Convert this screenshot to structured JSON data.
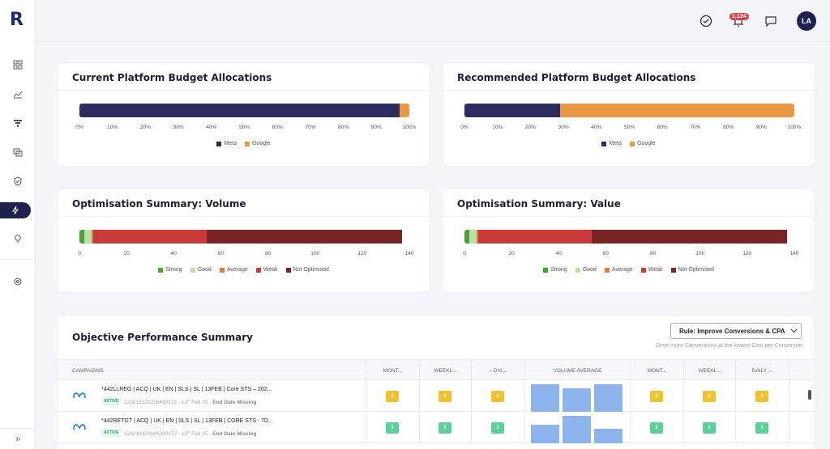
{
  "app": {
    "logo_letter": "R",
    "notification_count": "1,124",
    "user_initials": "LA"
  },
  "colors": {
    "meta": "#2e2c5e",
    "google": "#eb9844",
    "strong": "#4e9e3e",
    "good": "#b5e3a6",
    "average": "#e07a3e",
    "weak": "#c93a3a",
    "not_optimised": "#7a2525",
    "badge_yellow": "#f2c12e",
    "badge_green": "#5fcf9a",
    "volume_bar": "#8db4ec"
  },
  "cards": {
    "current_allocation": {
      "title": "Current Platform Budget Allocations",
      "chart_data": {
        "type": "bar",
        "orientation": "horizontal-stacked",
        "categories": [
          ""
        ],
        "series": [
          {
            "name": "Meta",
            "values": [
              97
            ]
          },
          {
            "name": "Google",
            "values": [
              3
            ]
          }
        ],
        "xlim": [
          0,
          100
        ],
        "ticks": [
          "0%",
          "10%",
          "20%",
          "30%",
          "40%",
          "50%",
          "60%",
          "70%",
          "80%",
          "90%",
          "100%"
        ],
        "legend": [
          "Meta",
          "Google"
        ]
      }
    },
    "recommended_allocation": {
      "title": "Recommended Platform Budget Allocations",
      "chart_data": {
        "type": "bar",
        "orientation": "horizontal-stacked",
        "categories": [
          ""
        ],
        "series": [
          {
            "name": "Meta",
            "values": [
              29
            ]
          },
          {
            "name": "Google",
            "values": [
              71
            ]
          }
        ],
        "xlim": [
          0,
          100
        ],
        "ticks": [
          "0%",
          "10%",
          "20%",
          "30%",
          "40%",
          "50%",
          "60%",
          "70%",
          "80%",
          "90%",
          "100%"
        ],
        "legend": [
          "Meta",
          "Google"
        ]
      }
    },
    "opt_volume": {
      "title": "Optimisation Summary: Volume",
      "chart_data": {
        "type": "bar",
        "orientation": "horizontal-stacked",
        "categories": [
          ""
        ],
        "series": [
          {
            "name": "Strong",
            "values": [
              2
            ]
          },
          {
            "name": "Good",
            "values": [
              3
            ]
          },
          {
            "name": "Average",
            "values": [
              1
            ]
          },
          {
            "name": "Weak",
            "values": [
              48
            ]
          },
          {
            "name": "Not Optimised",
            "values": [
              83
            ]
          }
        ],
        "xlim": [
          0,
          140
        ],
        "ticks": [
          "0",
          "20",
          "40",
          "60",
          "80",
          "100",
          "120",
          "140"
        ],
        "legend": [
          "Strong",
          "Good",
          "Average",
          "Weak",
          "Not Optimised"
        ]
      }
    },
    "opt_value": {
      "title": "Optimisation Summary: Value",
      "chart_data": {
        "type": "bar",
        "orientation": "horizontal-stacked",
        "categories": [
          ""
        ],
        "series": [
          {
            "name": "Strong",
            "values": [
              2
            ]
          },
          {
            "name": "Good",
            "values": [
              3
            ]
          },
          {
            "name": "Average",
            "values": [
              1
            ]
          },
          {
            "name": "Weak",
            "values": [
              48
            ]
          },
          {
            "name": "Not Optimised",
            "values": [
              83
            ]
          }
        ],
        "xlim": [
          0,
          140
        ],
        "ticks": [
          "0",
          "20",
          "40",
          "60",
          "80",
          "100",
          "120",
          "140"
        ],
        "legend": [
          "Strong",
          "Good",
          "Average",
          "Weak",
          "Not Optimised"
        ]
      }
    }
  },
  "objective": {
    "title": "Objective Performance Summary",
    "rule_button": "Rule: Improve Conversions & CPA",
    "rule_subtitle": "Drive more Conversions at the lowest Cost per Conversion",
    "columns": [
      "CAMPAIGNS",
      "MONT...",
      "WEEKL...",
      "↓ DAI...",
      "VOLUME AVERAGE",
      "MONT...",
      "WEEKL...",
      "DAILY ..."
    ],
    "rows": [
      {
        "name": "*442LLREG | ACQ | UK | EN | SLS | SL | 13FEB | Core STS – 202...",
        "status": "ACTIVE",
        "sub": "120216320258490172 - 13",
        "sub_sup": "th",
        "sub_date": " Feb 25 - ",
        "sub_missing": "End Date Missing",
        "scores": [
          "2",
          "2",
          "2"
        ],
        "scores2": [
          "2",
          "2",
          "2"
        ],
        "badge_color": "yellow",
        "volume": [
          0.95,
          0.8,
          0.95
        ]
      },
      {
        "name": "*442RETGT | ACQ | UK | EN | SLS | SL | 13FEB | CORE STS - 7D...",
        "status": "ACTIVE",
        "sub": "120216320685200172 - 13",
        "sub_sup": "th",
        "sub_date": " Feb 25 - ",
        "sub_missing": "End Date Missing",
        "scores": [
          "1",
          "1",
          "1"
        ],
        "scores2": [
          "1",
          "1",
          "1"
        ],
        "badge_color": "green",
        "volume": [
          0.65,
          0.95,
          0.5
        ]
      }
    ]
  }
}
